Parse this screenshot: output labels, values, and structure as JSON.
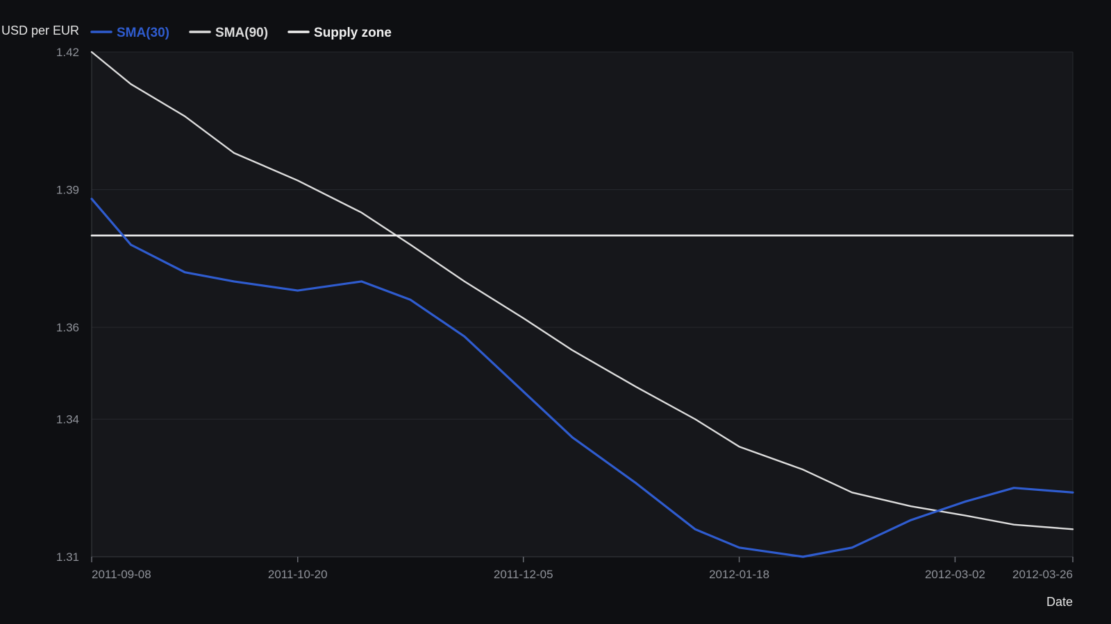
{
  "chart_data": {
    "type": "line",
    "ylabel": "USD per EUR",
    "xlabel": "Date",
    "ylim": [
      1.31,
      1.42
    ],
    "yticks": [
      1.31,
      1.34,
      1.36,
      1.39,
      1.42
    ],
    "ytick_labels": [
      "1.31",
      "1.34",
      "1.36",
      "1.39",
      "1.42"
    ],
    "x_range": [
      "2011-09-08",
      "2012-03-26"
    ],
    "xticks": [
      "2011-09-08",
      "2011-10-20",
      "2011-12-05",
      "2012-01-18",
      "2012-03-02",
      "2012-03-26"
    ],
    "grid": true,
    "legend_position": "top-left",
    "colors": {
      "background": "#0e0f12",
      "plot_background": "#16171b",
      "grid": "#26282d",
      "axis": "#3a3c42"
    },
    "series": [
      {
        "name": "SMA(30)",
        "color": "#2f5ccf",
        "points": [
          [
            "2011-09-08",
            1.388
          ],
          [
            "2011-09-16",
            1.378
          ],
          [
            "2011-09-27",
            1.372
          ],
          [
            "2011-10-07",
            1.37
          ],
          [
            "2011-10-20",
            1.368
          ],
          [
            "2011-11-02",
            1.37
          ],
          [
            "2011-11-12",
            1.366
          ],
          [
            "2011-11-23",
            1.358
          ],
          [
            "2011-12-05",
            1.346
          ],
          [
            "2011-12-15",
            1.336
          ],
          [
            "2011-12-28",
            1.326
          ],
          [
            "2012-01-09",
            1.316
          ],
          [
            "2012-01-18",
            1.312
          ],
          [
            "2012-01-31",
            1.31
          ],
          [
            "2012-02-10",
            1.312
          ],
          [
            "2012-02-22",
            1.318
          ],
          [
            "2012-03-04",
            1.322
          ],
          [
            "2012-03-14",
            1.325
          ],
          [
            "2012-03-26",
            1.324
          ]
        ]
      },
      {
        "name": "SMA(90)",
        "color": "#dddddd",
        "points": [
          [
            "2011-09-08",
            1.42
          ],
          [
            "2011-09-16",
            1.413
          ],
          [
            "2011-09-27",
            1.406
          ],
          [
            "2011-10-07",
            1.398
          ],
          [
            "2011-10-20",
            1.392
          ],
          [
            "2011-11-02",
            1.385
          ],
          [
            "2011-11-12",
            1.378
          ],
          [
            "2011-11-23",
            1.37
          ],
          [
            "2011-12-05",
            1.362
          ],
          [
            "2011-12-15",
            1.355
          ],
          [
            "2011-12-28",
            1.347
          ],
          [
            "2012-01-09",
            1.34
          ],
          [
            "2012-01-18",
            1.334
          ],
          [
            "2012-01-31",
            1.329
          ],
          [
            "2012-02-10",
            1.324
          ],
          [
            "2012-02-22",
            1.321
          ],
          [
            "2012-03-04",
            1.319
          ],
          [
            "2012-03-14",
            1.317
          ],
          [
            "2012-03-26",
            1.316
          ]
        ]
      },
      {
        "name": "Supply zone",
        "color": "#f0f0f0",
        "points": [
          [
            "2011-09-08",
            1.38
          ],
          [
            "2012-03-26",
            1.38
          ]
        ]
      }
    ]
  }
}
